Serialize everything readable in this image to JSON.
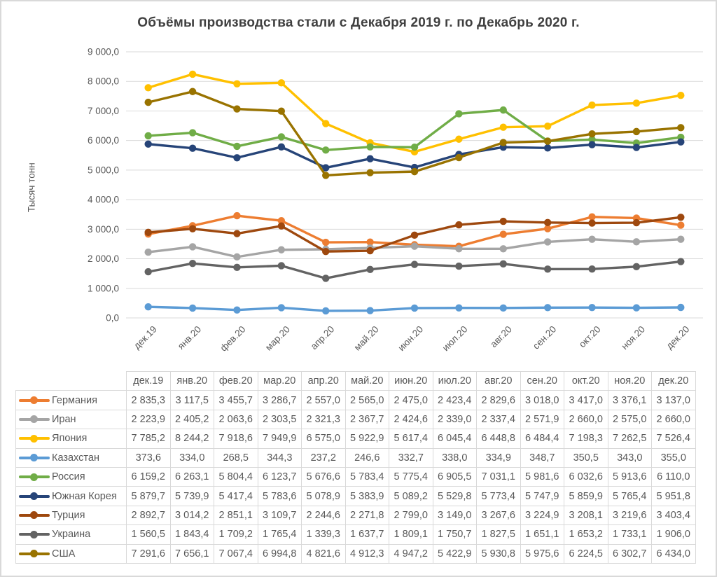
{
  "chart_data": {
    "type": "line",
    "title": "Объёмы производства стали с Декабря 2019 г. по Декабрь 2020 г.",
    "ylabel": "Тысяч тонн",
    "xlabel": "",
    "ylim": [
      0,
      9000
    ],
    "ytick_step": 1000,
    "grid": "horizontal-only",
    "gridline_color": "#d9d9d9",
    "legend_position": "table-left-column",
    "marker": "circle",
    "x": [
      "дек.19",
      "янв.20",
      "фев.20",
      "мар.20",
      "апр.20",
      "май.20",
      "июн.20",
      "июл.20",
      "авг.20",
      "сен.20",
      "окт.20",
      "ноя.20",
      "дек.20"
    ],
    "series": [
      {
        "name": "Германия",
        "color": "#ED7D31",
        "values": [
          2835.3,
          3117.5,
          3455.7,
          3286.7,
          2557.0,
          2565.0,
          2475.0,
          2423.4,
          2829.6,
          3018.0,
          3417.0,
          3376.1,
          3137.0
        ]
      },
      {
        "name": "Иран",
        "color": "#A5A5A5",
        "values": [
          2223.9,
          2405.2,
          2063.6,
          2303.5,
          2321.3,
          2367.7,
          2424.6,
          2339.0,
          2337.4,
          2571.9,
          2660.0,
          2575.0,
          2660.0
        ]
      },
      {
        "name": "Япония",
        "color": "#FFC000",
        "values": [
          7785.2,
          8244.2,
          7918.6,
          7949.9,
          6575.0,
          5922.9,
          5617.4,
          6045.4,
          6448.8,
          6484.4,
          7198.3,
          7262.5,
          7526.4
        ]
      },
      {
        "name": "Казахстан",
        "color": "#5B9BD5",
        "values": [
          373.6,
          334.0,
          268.5,
          344.3,
          237.2,
          246.6,
          332.7,
          338.0,
          334.9,
          348.7,
          350.5,
          343.0,
          355.0
        ]
      },
      {
        "name": "Россия",
        "color": "#70AD47",
        "values": [
          6159.2,
          6263.1,
          5804.4,
          6123.7,
          5676.6,
          5783.4,
          5775.4,
          6905.5,
          7031.1,
          5981.6,
          6032.6,
          5913.6,
          6110.0
        ]
      },
      {
        "name": "Южная Корея",
        "color": "#264478",
        "values": [
          5879.7,
          5739.9,
          5417.4,
          5783.6,
          5078.9,
          5383.9,
          5089.2,
          5529.8,
          5773.4,
          5747.9,
          5859.9,
          5765.4,
          5951.8
        ]
      },
      {
        "name": "Турция",
        "color": "#9E480E",
        "values": [
          2892.7,
          3014.2,
          2851.1,
          3109.7,
          2244.6,
          2271.8,
          2799.0,
          3149.0,
          3267.6,
          3224.9,
          3208.1,
          3219.6,
          3403.4
        ]
      },
      {
        "name": "Украина",
        "color": "#636363",
        "values": [
          1560.5,
          1843.4,
          1709.2,
          1765.4,
          1339.3,
          1637.7,
          1809.1,
          1750.7,
          1827.5,
          1651.1,
          1653.2,
          1733.1,
          1906.0
        ]
      },
      {
        "name": "США",
        "color": "#997300",
        "values": [
          7291.6,
          7656.1,
          7067.4,
          6994.8,
          4821.6,
          4912.3,
          4947.2,
          5422.9,
          5930.8,
          5975.6,
          6224.5,
          6302.7,
          6434.0
        ]
      }
    ],
    "number_format": {
      "decimals": 1,
      "decimal_separator": ",",
      "thousands_separator": " "
    }
  },
  "colors": {
    "title_text": "#404040",
    "axis_text": "#595959",
    "table_text": "#595959",
    "table_border": "#d9d9d9",
    "page_frame": "#d9d9d9"
  }
}
